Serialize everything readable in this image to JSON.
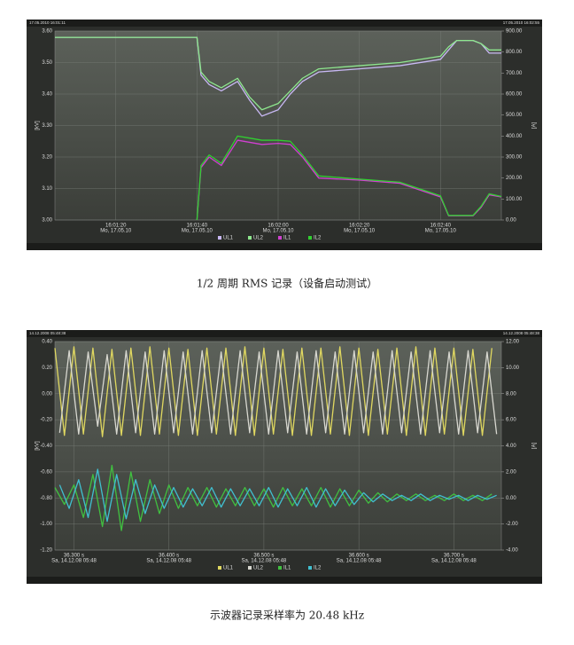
{
  "figures": [
    {
      "chart_data": {
        "type": "line",
        "header_left": "17.05.2010 16:01:11",
        "header_right": "17.05.2010 16:02:55",
        "ylabel": "[kV]",
        "y2label": "[A]",
        "xtick_sublabel": "Mo, 17.05.10",
        "x": [
          "16:01:05",
          "16:01:40",
          "16:01:41",
          "16:01:43",
          "16:01:46",
          "16:01:50",
          "16:01:53",
          "16:01:56",
          "16:02:00",
          "16:02:03",
          "16:02:06",
          "16:02:10",
          "16:02:20",
          "16:02:30",
          "16:02:40",
          "16:02:42",
          "16:02:44",
          "16:02:48",
          "16:02:50",
          "16:02:52",
          "16:02:55"
        ],
        "xlim": [
          "16:01:05",
          "16:02:55"
        ],
        "xticks": [
          "16:01:20",
          "16:01:40",
          "16:02:00",
          "16:02:20",
          "16:02:40"
        ],
        "ylim": [
          3.0,
          3.6
        ],
        "yticks": [
          {
            "value": 3.6,
            "label": "3.60"
          },
          {
            "value": 3.5,
            "label": "3.50"
          },
          {
            "value": 3.4,
            "label": "3.40"
          },
          {
            "value": 3.3,
            "label": "3.30"
          },
          {
            "value": 3.2,
            "label": "3.20"
          },
          {
            "value": 3.1,
            "label": "3.10"
          },
          {
            "value": 3.0,
            "label": "3.00"
          }
        ],
        "y2lim": [
          0,
          900
        ],
        "y2ticks": [
          {
            "value": 900,
            "label": "900.00"
          },
          {
            "value": 800,
            "label": "800.00"
          },
          {
            "value": 700,
            "label": "700.00"
          },
          {
            "value": 600,
            "label": "600.00"
          },
          {
            "value": 500,
            "label": "500.00"
          },
          {
            "value": 400,
            "label": "400.00"
          },
          {
            "value": 300,
            "label": "300.00"
          },
          {
            "value": 200,
            "label": "200.00"
          },
          {
            "value": 100,
            "label": "100.00"
          },
          {
            "value": 0,
            "label": "0.00"
          }
        ],
        "grid": true,
        "series": [
          {
            "name": "UL1",
            "color": "#c8b8f4",
            "values": [
              3.58,
              3.58,
              3.46,
              3.43,
              3.41,
              3.44,
              3.38,
              3.33,
              3.35,
              3.4,
              3.44,
              3.47,
              3.48,
              3.49,
              3.51,
              3.54,
              3.57,
              3.57,
              3.56,
              3.53,
              3.53
            ]
          },
          {
            "name": "UL2",
            "color": "#8ee88e",
            "values": [
              3.58,
              3.58,
              3.47,
              3.44,
              3.42,
              3.45,
              3.39,
              3.35,
              3.37,
              3.41,
              3.45,
              3.48,
              3.49,
              3.5,
              3.52,
              3.55,
              3.57,
              3.57,
              3.56,
              3.54,
              3.54
            ]
          },
          {
            "name": "IL1",
            "color": "#d040d0",
            "axis": "y2",
            "values": [
              null,
              0,
              250,
              300,
              260,
              380,
              370,
              360,
              365,
              360,
              300,
              200,
              190,
              175,
              110,
              20,
              20,
              20,
              60,
              120,
              110
            ]
          },
          {
            "name": "IL2",
            "color": "#30d030",
            "axis": "y2",
            "values": [
              null,
              0,
              260,
              310,
              270,
              400,
              390,
              380,
              380,
              375,
              310,
              210,
              195,
              180,
              115,
              22,
              22,
              22,
              65,
              125,
              112
            ]
          }
        ]
      },
      "caption": "1/2 周期 RMS 记录（设备启动测试）"
    },
    {
      "chart_data": {
        "type": "line",
        "header_left": "14.12.2008 05:48:38",
        "header_right": "14.12.2008 05:48:38",
        "ylabel": "[kV]",
        "y2label": "[A]",
        "xtick_sublabel": "Sa, 14.12.08 05:48",
        "xlim": [
          36.28,
          36.75
        ],
        "xticks": [
          {
            "value": 36.3,
            "label": "36.300 s"
          },
          {
            "value": 36.4,
            "label": "36.400 s"
          },
          {
            "value": 36.5,
            "label": "36.500 s"
          },
          {
            "value": 36.6,
            "label": "36.600 s"
          },
          {
            "value": 36.7,
            "label": "36.700 s"
          }
        ],
        "ylim": [
          -1.2,
          0.4
        ],
        "yticks": [
          {
            "value": 0.4,
            "label": "0.40"
          },
          {
            "value": 0.2,
            "label": "0.20"
          },
          {
            "value": 0,
            "label": "0.00"
          },
          {
            "value": -0.2,
            "label": "-0.20"
          },
          {
            "value": -0.4,
            "label": "-0.40"
          },
          {
            "value": -0.6,
            "label": "-0.60"
          },
          {
            "value": -0.8,
            "label": "-0.80"
          },
          {
            "value": -1.0,
            "label": "-1.00"
          },
          {
            "value": -1.2,
            "label": "-1.20"
          }
        ],
        "y2lim": [
          -4,
          12
        ],
        "y2ticks": [
          {
            "value": 12,
            "label": "12.00"
          },
          {
            "value": 10,
            "label": "10.00"
          },
          {
            "value": 8,
            "label": "8.00"
          },
          {
            "value": 6,
            "label": "6.00"
          },
          {
            "value": 4,
            "label": "4.00"
          },
          {
            "value": 2,
            "label": "2.00"
          },
          {
            "value": 0,
            "label": "0.00"
          },
          {
            "value": -2,
            "label": "-2.00"
          },
          {
            "value": -4,
            "label": "-4.00"
          }
        ],
        "grid": true,
        "series": [
          {
            "name": "UL1",
            "color": "#e0d860",
            "x": [
              36.28,
              36.29,
              36.3,
              36.31,
              36.32,
              36.33,
              36.34,
              36.35,
              36.36,
              36.37,
              36.38,
              36.39,
              36.4,
              36.41,
              36.42,
              36.43,
              36.44,
              36.45,
              36.46,
              36.47,
              36.48,
              36.49,
              36.5,
              36.51,
              36.52,
              36.53,
              36.54,
              36.55,
              36.56,
              36.57,
              36.58,
              36.59,
              36.6,
              36.61,
              36.62,
              36.63,
              36.64,
              36.65,
              36.66,
              36.67,
              36.68,
              36.69,
              36.7,
              36.71,
              36.72,
              36.73,
              36.74
            ],
            "values": [
              0.35,
              -0.32,
              0.36,
              -0.31,
              0.35,
              -0.33,
              0.34,
              -0.32,
              0.35,
              -0.32,
              0.36,
              -0.31,
              0.35,
              -0.32,
              0.34,
              -0.32,
              0.35,
              -0.31,
              0.35,
              -0.32,
              0.36,
              -0.32,
              0.35,
              -0.31,
              0.34,
              -0.32,
              0.35,
              -0.32,
              0.35,
              -0.31,
              0.36,
              -0.32,
              0.35,
              -0.32,
              0.34,
              -0.31,
              0.35,
              -0.32,
              0.36,
              -0.32,
              0.35,
              -0.31,
              0.35,
              -0.32,
              0.34,
              -0.32,
              0.35
            ]
          },
          {
            "name": "UL2",
            "color": "#d8d8d0",
            "x": [
              36.285,
              36.295,
              36.305,
              36.315,
              36.325,
              36.335,
              36.345,
              36.355,
              36.365,
              36.375,
              36.385,
              36.395,
              36.405,
              36.415,
              36.425,
              36.435,
              36.445,
              36.455,
              36.465,
              36.475,
              36.485,
              36.495,
              36.505,
              36.515,
              36.525,
              36.535,
              36.545,
              36.555,
              36.565,
              36.575,
              36.585,
              36.595,
              36.605,
              36.615,
              36.625,
              36.635,
              36.645,
              36.655,
              36.665,
              36.675,
              36.685,
              36.695,
              36.705,
              36.715,
              36.725,
              36.735,
              36.745
            ],
            "values": [
              -0.3,
              0.33,
              -0.31,
              0.32,
              -0.25,
              0.3,
              -0.31,
              0.33,
              -0.3,
              0.32,
              -0.31,
              0.33,
              -0.3,
              0.32,
              -0.31,
              0.33,
              -0.3,
              0.32,
              -0.31,
              0.33,
              -0.3,
              0.32,
              -0.31,
              0.33,
              -0.3,
              0.32,
              -0.31,
              0.33,
              -0.3,
              0.32,
              -0.31,
              0.33,
              -0.3,
              0.32,
              -0.31,
              0.33,
              -0.3,
              0.32,
              -0.31,
              0.33,
              -0.3,
              0.32,
              -0.31,
              0.33,
              -0.3,
              0.32,
              -0.31
            ]
          },
          {
            "name": "IL1",
            "color": "#40c040",
            "x": [
              36.28,
              36.29,
              36.3,
              36.31,
              36.32,
              36.33,
              36.34,
              36.35,
              36.36,
              36.37,
              36.38,
              36.39,
              36.4,
              36.41,
              36.42,
              36.43,
              36.44,
              36.45,
              36.46,
              36.47,
              36.48,
              36.49,
              36.5,
              36.51,
              36.52,
              36.53,
              36.54,
              36.55,
              36.56,
              36.57,
              36.58,
              36.59,
              36.6,
              36.61,
              36.62,
              36.63,
              36.64,
              36.65,
              36.66,
              36.67,
              36.68,
              36.69,
              36.7,
              36.71,
              36.72,
              36.73,
              36.74
            ],
            "values": [
              -0.72,
              -0.85,
              -0.7,
              -0.95,
              -0.62,
              -1.02,
              -0.55,
              -1.05,
              -0.6,
              -0.98,
              -0.66,
              -0.92,
              -0.7,
              -0.88,
              -0.72,
              -0.86,
              -0.72,
              -0.87,
              -0.73,
              -0.86,
              -0.72,
              -0.86,
              -0.73,
              -0.87,
              -0.72,
              -0.86,
              -0.73,
              -0.86,
              -0.72,
              -0.87,
              -0.73,
              -0.86,
              -0.74,
              -0.84,
              -0.76,
              -0.83,
              -0.77,
              -0.82,
              -0.77,
              -0.82,
              -0.78,
              -0.82,
              -0.77,
              -0.82,
              -0.78,
              -0.82,
              -0.77
            ]
          },
          {
            "name": "IL2",
            "color": "#40c0d0",
            "x": [
              36.285,
              36.295,
              36.305,
              36.315,
              36.325,
              36.335,
              36.345,
              36.355,
              36.365,
              36.375,
              36.385,
              36.395,
              36.405,
              36.415,
              36.425,
              36.435,
              36.445,
              36.455,
              36.465,
              36.475,
              36.485,
              36.495,
              36.505,
              36.515,
              36.525,
              36.535,
              36.545,
              36.555,
              36.565,
              36.575,
              36.585,
              36.595,
              36.605,
              36.615,
              36.625,
              36.635,
              36.645,
              36.655,
              36.665,
              36.675,
              36.685,
              36.695,
              36.705,
              36.715,
              36.725,
              36.735,
              36.745
            ],
            "values": [
              -0.7,
              -0.88,
              -0.66,
              -0.95,
              -0.58,
              -0.98,
              -0.62,
              -0.96,
              -0.66,
              -0.92,
              -0.7,
              -0.88,
              -0.72,
              -0.87,
              -0.73,
              -0.86,
              -0.72,
              -0.87,
              -0.73,
              -0.86,
              -0.73,
              -0.86,
              -0.72,
              -0.87,
              -0.73,
              -0.86,
              -0.72,
              -0.87,
              -0.73,
              -0.86,
              -0.74,
              -0.85,
              -0.76,
              -0.83,
              -0.77,
              -0.82,
              -0.78,
              -0.82,
              -0.77,
              -0.82,
              -0.78,
              -0.81,
              -0.78,
              -0.82,
              -0.78,
              -0.81,
              -0.78
            ]
          }
        ]
      },
      "caption": "示波器记录采样率为 20.48 kHz"
    }
  ]
}
